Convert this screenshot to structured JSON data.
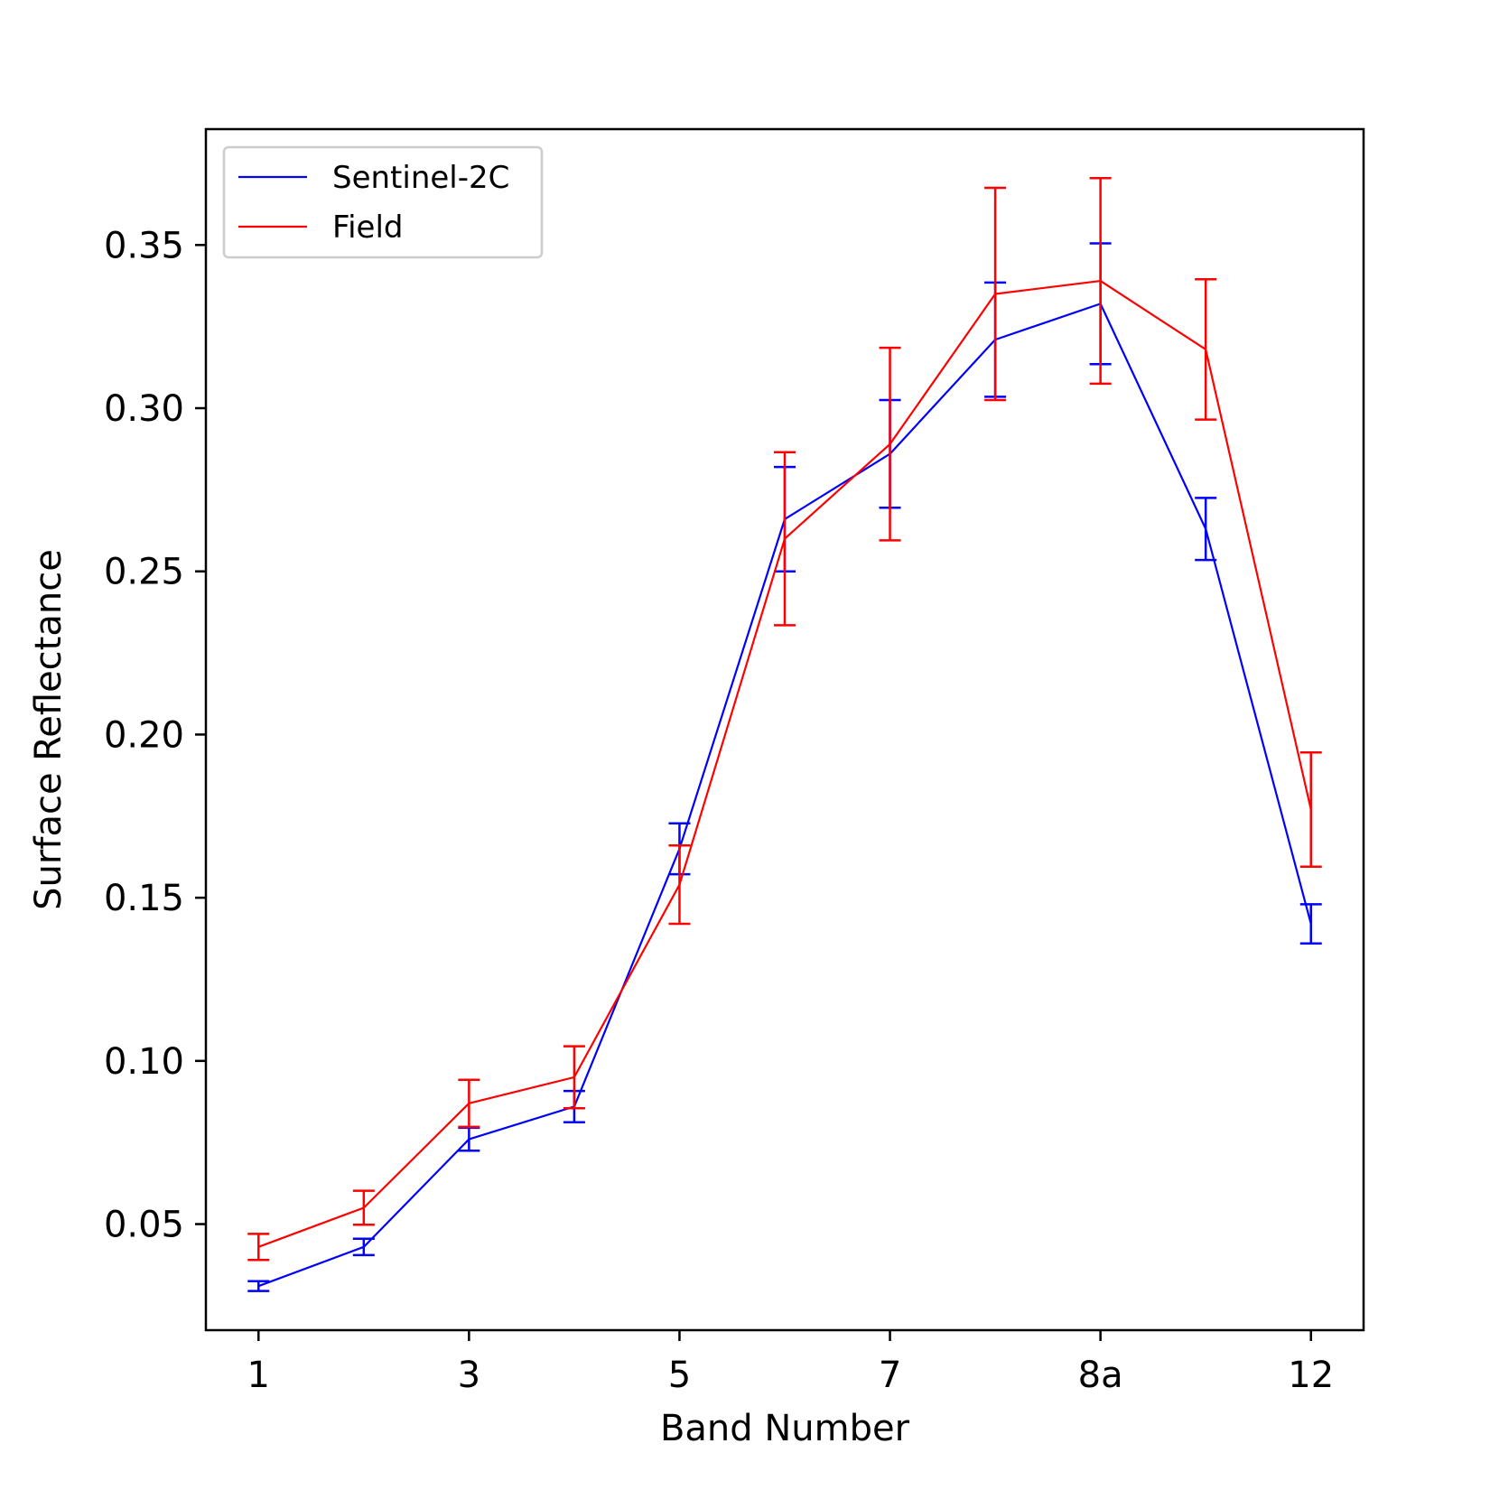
{
  "chart_data": {
    "type": "line",
    "title": "",
    "xlabel": "Band Number",
    "ylabel": "Surface Reflectance",
    "x_tick_labels": [
      "1",
      "3",
      "5",
      "7",
      "8a",
      "12"
    ],
    "x_tick_positions": [
      0,
      2,
      4,
      6,
      8,
      10
    ],
    "x_positions": [
      0,
      1,
      2,
      3,
      4,
      5,
      6,
      7,
      8,
      9,
      10
    ],
    "xlim": [
      -0.5,
      10.5
    ],
    "ylim": [
      0.0175,
      0.3855
    ],
    "y_ticks": [
      0.05,
      0.1,
      0.15,
      0.2,
      0.25,
      0.3,
      0.35
    ],
    "y_tick_labels": [
      "0.05",
      "0.10",
      "0.15",
      "0.20",
      "0.25",
      "0.30",
      "0.35"
    ],
    "grid": false,
    "legend_position": "upper-left",
    "series": [
      {
        "name": "Sentinel-2C",
        "color": "#0000ff",
        "values": [
          0.031,
          0.043,
          0.076,
          0.086,
          0.165,
          0.266,
          0.286,
          0.321,
          0.332,
          0.263,
          0.142
        ],
        "errors": [
          0.0015,
          0.0025,
          0.0035,
          0.0048,
          0.0078,
          0.016,
          0.0165,
          0.0175,
          0.0185,
          0.0095,
          0.006
        ]
      },
      {
        "name": "Field",
        "color": "#ff0000",
        "values": [
          0.043,
          0.055,
          0.087,
          0.095,
          0.154,
          0.26,
          0.289,
          0.335,
          0.339,
          0.318,
          0.177
        ],
        "errors": [
          0.004,
          0.0052,
          0.0072,
          0.0095,
          0.012,
          0.0265,
          0.0295,
          0.0325,
          0.0315,
          0.0215,
          0.0175
        ]
      }
    ]
  }
}
